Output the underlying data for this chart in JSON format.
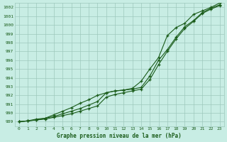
{
  "title": "Graphe pression niveau de la mer (hPa)",
  "bg_color": "#c8ede4",
  "grid_color": "#9ec8bc",
  "line_color": "#1a5c1a",
  "xlim_min": -0.5,
  "xlim_max": 23.5,
  "ylim_min": 988.5,
  "ylim_max": 1002.5,
  "yticks": [
    989,
    990,
    991,
    992,
    993,
    994,
    995,
    996,
    997,
    998,
    999,
    1000,
    1001,
    1002
  ],
  "xticks": [
    0,
    1,
    2,
    3,
    4,
    5,
    6,
    7,
    8,
    9,
    10,
    11,
    12,
    13,
    14,
    15,
    16,
    17,
    18,
    19,
    20,
    21,
    22,
    23
  ],
  "line1_y": [
    989.0,
    989.1,
    989.2,
    989.4,
    989.6,
    989.9,
    990.2,
    990.5,
    990.9,
    991.3,
    992.3,
    992.5,
    992.6,
    992.7,
    992.9,
    994.2,
    996.0,
    997.2,
    998.6,
    999.8,
    1000.5,
    1001.4,
    1001.9,
    1002.3
  ],
  "line2_y": [
    989.0,
    989.1,
    989.2,
    989.3,
    989.5,
    989.7,
    989.9,
    990.2,
    990.5,
    990.8,
    991.8,
    992.1,
    992.3,
    992.5,
    992.7,
    993.8,
    995.5,
    997.0,
    998.4,
    999.6,
    1000.4,
    1001.3,
    1001.8,
    1002.2
  ],
  "line3_y": [
    989.0,
    989.1,
    989.3,
    989.4,
    989.8,
    990.2,
    990.6,
    991.1,
    991.5,
    992.0,
    992.3,
    992.5,
    992.6,
    992.8,
    993.6,
    995.0,
    996.3,
    998.8,
    999.7,
    1000.2,
    1001.2,
    1001.6,
    1002.0,
    1002.5
  ],
  "xlabel_fontsize": 5.5,
  "tick_fontsize": 4.5,
  "linewidth": 0.8,
  "markersize": 3.5,
  "markeredgewidth": 0.9
}
